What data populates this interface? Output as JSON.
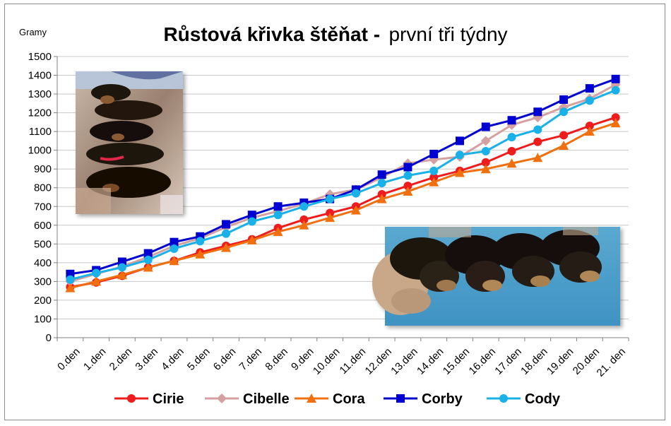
{
  "chart_data": {
    "type": "line",
    "title_bold": "Růstová křivka štěňat -",
    "title_normal": "první tři týdny",
    "ylabel": "Gramy",
    "xlabel": "",
    "ylim": [
      0,
      1500
    ],
    "ytick_step": 100,
    "grid": true,
    "legend_position": "bottom",
    "categories": [
      "0.den",
      "1.den",
      "2.den",
      "3.den",
      "4.den",
      "5.den",
      "6.den",
      "7.den",
      "8.den",
      "9.den",
      "10.den",
      "11.den",
      "12.den",
      "13.den",
      "14.den",
      "15.den",
      "16.den",
      "17.den",
      "18.den",
      "19.den",
      "20.den",
      "21. den"
    ],
    "series": [
      {
        "name": "Cirie",
        "color": "#ee1c1c",
        "marker": "circle",
        "values": [
          270,
          295,
          330,
          375,
          410,
          455,
          490,
          525,
          585,
          630,
          665,
          700,
          765,
          810,
          855,
          890,
          935,
          995,
          1045,
          1080,
          1130,
          1175
        ]
      },
      {
        "name": "Cibelle",
        "color": "#d4a0a0",
        "marker": "diamond",
        "values": [
          300,
          340,
          380,
          430,
          490,
          530,
          590,
          640,
          675,
          715,
          765,
          790,
          855,
          930,
          950,
          965,
          1050,
          1135,
          1175,
          1230,
          1275,
          1350
        ]
      },
      {
        "name": "Cora",
        "color": "#f07010",
        "marker": "triangle",
        "values": [
          265,
          300,
          335,
          375,
          410,
          445,
          480,
          520,
          565,
          600,
          640,
          680,
          740,
          780,
          830,
          880,
          900,
          930,
          960,
          1025,
          1100,
          1145
        ]
      },
      {
        "name": "Corby",
        "color": "#0000d0",
        "marker": "square",
        "values": [
          340,
          360,
          405,
          450,
          510,
          540,
          605,
          655,
          700,
          720,
          740,
          790,
          870,
          910,
          980,
          1050,
          1125,
          1160,
          1205,
          1270,
          1330,
          1380
        ]
      },
      {
        "name": "Cody",
        "color": "#1ab0e8",
        "marker": "circle",
        "values": [
          310,
          345,
          375,
          415,
          475,
          515,
          555,
          620,
          655,
          700,
          740,
          770,
          825,
          865,
          890,
          975,
          995,
          1070,
          1110,
          1205,
          1265,
          1320
        ]
      }
    ]
  },
  "photos": {
    "photo1_icon": "puppies-nursing-photo",
    "photo2_icon": "puppies-sleeping-photo"
  }
}
